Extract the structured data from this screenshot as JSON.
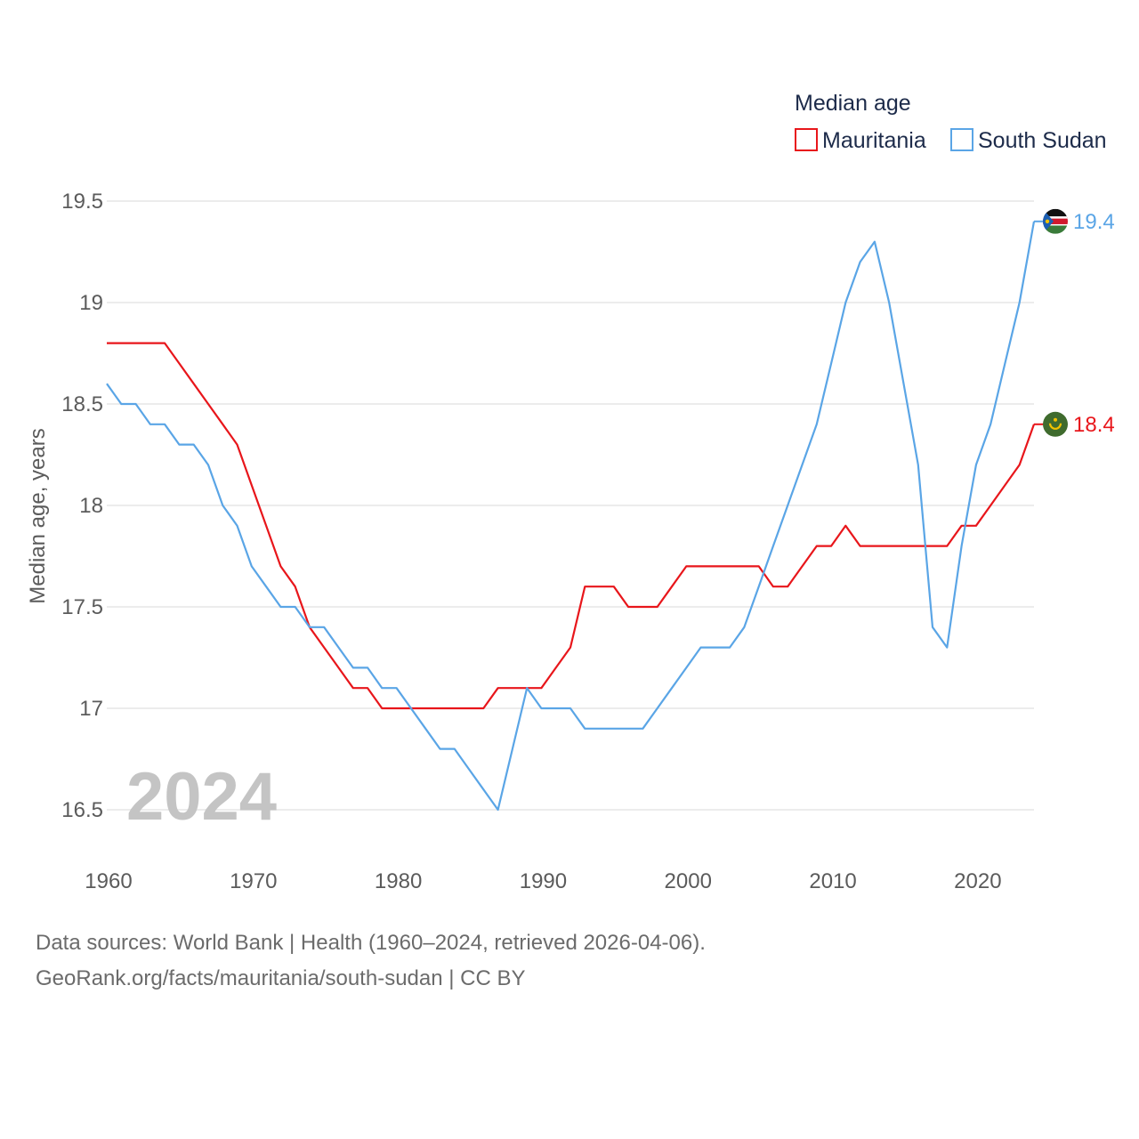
{
  "chart_data": {
    "type": "line",
    "title": "Median age",
    "xlabel": "",
    "ylabel": "Median age, years",
    "xlim": [
      1960,
      2024
    ],
    "ylim": [
      16.5,
      19.5
    ],
    "x_ticks": [
      1960,
      1970,
      1980,
      1990,
      2000,
      2010,
      2020
    ],
    "y_ticks": [
      16.5,
      17,
      17.5,
      18,
      18.5,
      19,
      19.5
    ],
    "y_tick_labels": [
      "16.5",
      "17",
      "17.5",
      "18",
      "18.5",
      "19",
      "19.5"
    ],
    "year_label": "2024",
    "x": [
      1960,
      1961,
      1962,
      1963,
      1964,
      1965,
      1966,
      1967,
      1968,
      1969,
      1970,
      1971,
      1972,
      1973,
      1974,
      1975,
      1976,
      1977,
      1978,
      1979,
      1980,
      1981,
      1982,
      1983,
      1984,
      1985,
      1986,
      1987,
      1988,
      1989,
      1990,
      1991,
      1992,
      1993,
      1994,
      1995,
      1996,
      1997,
      1998,
      1999,
      2000,
      2001,
      2002,
      2003,
      2004,
      2005,
      2006,
      2007,
      2008,
      2009,
      2010,
      2011,
      2012,
      2013,
      2014,
      2015,
      2016,
      2017,
      2018,
      2019,
      2020,
      2021,
      2022,
      2023,
      2024
    ],
    "series": [
      {
        "name": "Mauritania",
        "color": "#e8161b",
        "end_label": "18.4",
        "flag": "mauritania-flag-icon",
        "values": [
          18.8,
          18.8,
          18.8,
          18.8,
          18.8,
          18.7,
          18.6,
          18.5,
          18.4,
          18.3,
          18.1,
          17.9,
          17.7,
          17.6,
          17.4,
          17.3,
          17.2,
          17.1,
          17.1,
          17.0,
          17.0,
          17.0,
          17.0,
          17.0,
          17.0,
          17.0,
          17.0,
          17.1,
          17.1,
          17.1,
          17.1,
          17.2,
          17.3,
          17.6,
          17.6,
          17.6,
          17.5,
          17.5,
          17.5,
          17.6,
          17.7,
          17.7,
          17.7,
          17.7,
          17.7,
          17.7,
          17.6,
          17.6,
          17.7,
          17.8,
          17.8,
          17.9,
          17.8,
          17.8,
          17.8,
          17.8,
          17.8,
          17.8,
          17.8,
          17.9,
          17.9,
          18.0,
          18.1,
          18.2,
          18.4
        ]
      },
      {
        "name": "South Sudan",
        "color": "#5aa5e6",
        "end_label": "19.4",
        "flag": "south-sudan-flag-icon",
        "values": [
          18.6,
          18.5,
          18.5,
          18.4,
          18.4,
          18.3,
          18.3,
          18.2,
          18.0,
          17.9,
          17.7,
          17.6,
          17.5,
          17.5,
          17.4,
          17.4,
          17.3,
          17.2,
          17.2,
          17.1,
          17.1,
          17.0,
          16.9,
          16.8,
          16.8,
          16.7,
          16.6,
          16.5,
          16.8,
          17.1,
          17.0,
          17.0,
          17.0,
          16.9,
          16.9,
          16.9,
          16.9,
          16.9,
          17.0,
          17.1,
          17.2,
          17.3,
          17.3,
          17.3,
          17.4,
          17.6,
          17.8,
          18.0,
          18.2,
          18.4,
          18.7,
          19.0,
          19.2,
          19.3,
          19.0,
          18.6,
          18.2,
          17.4,
          17.3,
          17.8,
          18.2,
          18.4,
          18.7,
          19.0,
          19.4
        ]
      }
    ]
  },
  "legend": {
    "title": "Median age"
  },
  "source": {
    "line1": "Data sources: World Bank | Health (1960–2024, retrieved 2026-04-06).",
    "line2": "GeoRank.org/facts/mauritania/south-sudan | CC BY"
  }
}
